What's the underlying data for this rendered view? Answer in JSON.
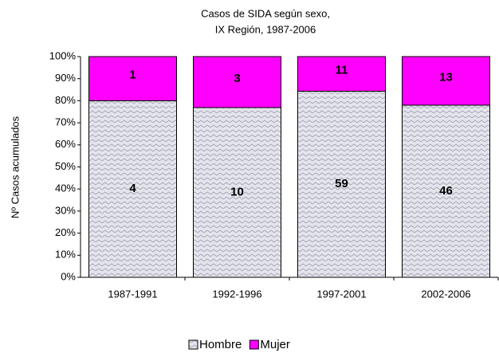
{
  "chart_data": {
    "type": "stacked_percent_bar",
    "title": "Casos de SIDA según sexo,",
    "subtitle": "IX Región, 1987-2006",
    "y_label": "Nº Casos acumulados",
    "categories": [
      "1987-1991",
      "1992-1996",
      "1997-2001",
      "2002-2006"
    ],
    "series": [
      {
        "name": "Hombre",
        "color": "#c8c8d8",
        "values": [
          80,
          76.9,
          84.3,
          78.0
        ],
        "counts": [
          "4",
          "10",
          "59",
          "46"
        ]
      },
      {
        "name": "Mujer",
        "color": "#ff00ff",
        "values": [
          20,
          23.1,
          15.7,
          22.0
        ],
        "counts": [
          "1",
          "3",
          "11",
          "13"
        ]
      }
    ],
    "ylim": [
      0,
      100
    ],
    "yticks": [
      {
        "value": 0,
        "label": "0%"
      },
      {
        "value": 10,
        "label": "10%"
      },
      {
        "value": 20,
        "label": "20%"
      },
      {
        "value": 30,
        "label": "30%"
      },
      {
        "value": 40,
        "label": "40%"
      },
      {
        "value": 50,
        "label": "50%"
      },
      {
        "value": 60,
        "label": "60%"
      },
      {
        "value": 70,
        "label": "70%"
      },
      {
        "value": 80,
        "label": "80%"
      },
      {
        "value": 90,
        "label": "90%"
      },
      {
        "value": 100,
        "label": "100%"
      }
    ],
    "legend": "bottom"
  }
}
